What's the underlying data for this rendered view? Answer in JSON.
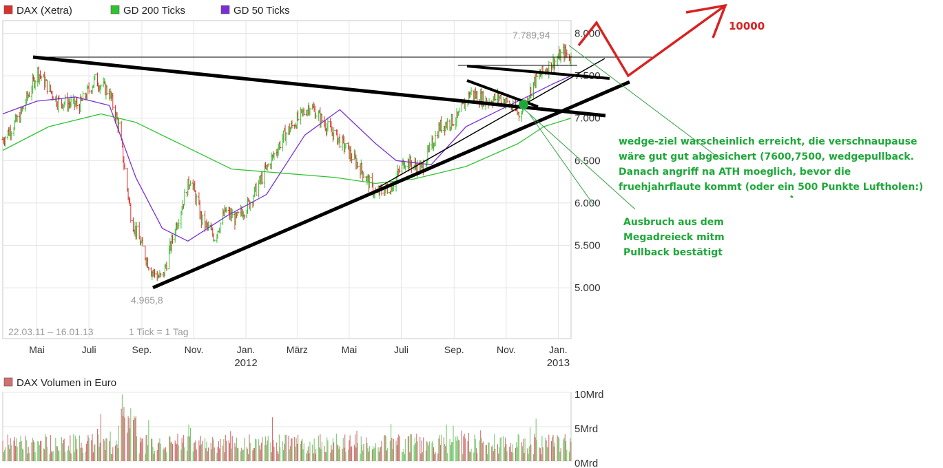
{
  "legend": [
    {
      "label": "DAX (Xetra)",
      "color": "#d9322c",
      "icon": "square-swatch"
    },
    {
      "label": "GD 200 Ticks",
      "color": "#2fc42f",
      "icon": "square-swatch"
    },
    {
      "label": "GD 50 Ticks",
      "color": "#7a2fd6",
      "icon": "square-swatch"
    }
  ],
  "chart_data": [
    {
      "type": "line",
      "series_kind": "ohlc",
      "x_start": "2011-03-22",
      "x_end": "2013-01-16",
      "ylim": [
        4400,
        8150
      ],
      "y_ticks": [
        "8.000",
        "7.500",
        "7.000",
        "6.500",
        "6.000",
        "5.500",
        "5.000"
      ],
      "y_tick_values": [
        8000,
        7500,
        7000,
        6500,
        6000,
        5500,
        5000
      ],
      "x_ticks": [
        {
          "label": "Mai",
          "date": "2011-05-01"
        },
        {
          "label": "Juli",
          "date": "2011-07-01"
        },
        {
          "label": "Sep.",
          "date": "2011-09-01"
        },
        {
          "label": "Nov.",
          "date": "2011-11-01"
        },
        {
          "label": "Jan.",
          "date": "2012-01-01"
        },
        {
          "label": "März",
          "date": "2012-03-01"
        },
        {
          "label": "Mai",
          "date": "2012-05-01"
        },
        {
          "label": "Juli",
          "date": "2012-07-01"
        },
        {
          "label": "Sep.",
          "date": "2012-09-01"
        },
        {
          "label": "Nov.",
          "date": "2012-11-01"
        },
        {
          "label": "Jan.",
          "date": "2013-01-01"
        }
      ],
      "year_labels": [
        {
          "label": "2012",
          "date": "2012-01-01"
        },
        {
          "label": "2013",
          "date": "2013-01-01"
        }
      ],
      "range_text": "22.03.11 – 16.01.13",
      "tick_text": "1 Tick = 1 Tag",
      "high_label": "7.789,94",
      "low_label": "4.965,8",
      "grid": true,
      "series": [
        {
          "name": "DAX (Xetra)",
          "x": [
            "2011-03-22",
            "2011-04-10",
            "2011-05-02",
            "2011-05-25",
            "2011-06-20",
            "2011-07-08",
            "2011-07-25",
            "2011-08-05",
            "2011-08-20",
            "2011-09-12",
            "2011-09-25",
            "2011-10-10",
            "2011-10-28",
            "2011-11-10",
            "2011-11-25",
            "2011-12-08",
            "2011-12-20",
            "2012-01-05",
            "2012-01-25",
            "2012-02-15",
            "2012-03-16",
            "2012-04-05",
            "2012-04-23",
            "2012-05-15",
            "2012-06-01",
            "2012-06-20",
            "2012-07-05",
            "2012-07-25",
            "2012-08-15",
            "2012-09-05",
            "2012-09-20",
            "2012-10-10",
            "2012-10-25",
            "2012-11-16",
            "2012-12-05",
            "2012-12-20",
            "2013-01-08",
            "2013-01-16"
          ],
          "values": [
            6750,
            7000,
            7550,
            7200,
            7150,
            7450,
            7300,
            6900,
            5800,
            5200,
            5100,
            5700,
            6300,
            5800,
            5600,
            5900,
            5800,
            6000,
            6400,
            6800,
            7150,
            6900,
            6700,
            6400,
            6100,
            6200,
            6500,
            6400,
            6900,
            7000,
            7300,
            7200,
            7250,
            7050,
            7450,
            7600,
            7780,
            7700
          ]
        },
        {
          "name": "GD 200 Ticks",
          "x": [
            "2011-03-22",
            "2011-05-15",
            "2011-07-15",
            "2011-08-25",
            "2011-10-15",
            "2011-12-15",
            "2012-02-15",
            "2012-04-15",
            "2012-06-01",
            "2012-07-15",
            "2012-09-15",
            "2012-11-15",
            "2012-12-15",
            "2013-01-16"
          ],
          "values": [
            6620,
            6900,
            7050,
            6950,
            6700,
            6400,
            6350,
            6300,
            6230,
            6280,
            6430,
            6700,
            6900,
            7000
          ]
        },
        {
          "name": "GD 50 Ticks",
          "x": [
            "2011-03-22",
            "2011-05-01",
            "2011-06-15",
            "2011-07-25",
            "2011-08-25",
            "2011-09-25",
            "2011-10-25",
            "2011-12-10",
            "2012-01-25",
            "2012-03-10",
            "2012-04-20",
            "2012-06-01",
            "2012-06-25",
            "2012-08-05",
            "2012-09-15",
            "2012-10-25",
            "2012-11-25",
            "2012-12-25",
            "2013-01-16"
          ],
          "values": [
            7050,
            7200,
            7250,
            7150,
            6300,
            5700,
            5550,
            5850,
            6100,
            6800,
            7100,
            6700,
            6500,
            6450,
            6900,
            7100,
            7250,
            7400,
            7500
          ]
        }
      ]
    },
    {
      "type": "bar",
      "title": "DAX Volumen in Euro",
      "y_ticks": [
        "10Mrd",
        "5Mrd",
        "0Mrd"
      ],
      "ylim": [
        0,
        10
      ],
      "unit": "Mrd",
      "typical_range": [
        1,
        4
      ],
      "peak": 9.7
    }
  ],
  "annotations": {
    "target": "10000",
    "wedge_lines": [
      "wedge-ziel warscheinlich erreicht, die verschnaupause",
      "wäre gut gut abgesichert (7600,7500, wedgepullback.",
      "Danach angriff na ATH moeglich, bevor die",
      "fruehjahrflaute kommt (oder ein 500 Punkte Luftholen:)"
    ],
    "ausbruch_lines": [
      "Ausbruch aus dem",
      "Megadreieck mitm",
      "Pullback bestätigt"
    ],
    "star": "*"
  },
  "colors": {
    "up": "#2fc42f",
    "down": "#d9322c",
    "ma200": "#2fc42f",
    "ma50": "#7a2fd6",
    "vol_up": "#79c86e",
    "vol_down": "#d07070",
    "trend": "#000000",
    "arrow": "#d82222",
    "annotation": "#1fa83a"
  }
}
